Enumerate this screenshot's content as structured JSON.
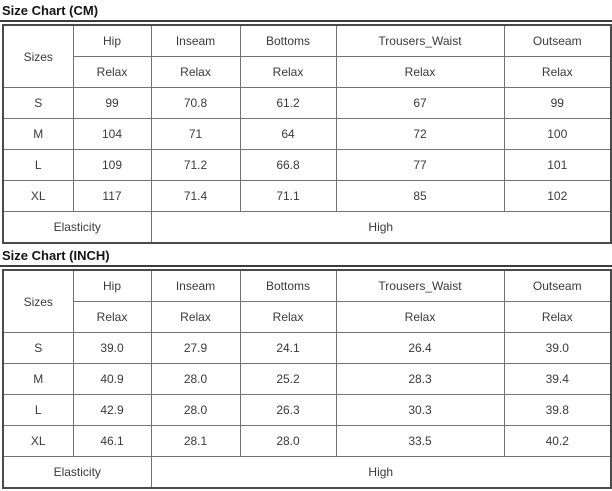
{
  "colors": {
    "background": "#ffffff",
    "title_text": "#141414",
    "cell_text": "#3a3a3a",
    "outer_border": "#4a4a4a",
    "inner_border": "#737373"
  },
  "sections": [
    {
      "title": "Size Chart (CM)",
      "corner_label": "Sizes",
      "columns": [
        "Hip",
        "Inseam",
        "Bottoms",
        "Trousers_Waist",
        "Outseam"
      ],
      "subheaders": [
        "Relax",
        "Relax",
        "Relax",
        "Relax",
        "Relax"
      ],
      "rows": [
        {
          "size": "S",
          "values": [
            "99",
            "70.8",
            "61.2",
            "67",
            "99"
          ]
        },
        {
          "size": "M",
          "values": [
            "104",
            "71",
            "64",
            "72",
            "100"
          ]
        },
        {
          "size": "L",
          "values": [
            "109",
            "71.2",
            "66.8",
            "77",
            "101"
          ]
        },
        {
          "size": "XL",
          "values": [
            "117",
            "71.4",
            "71.1",
            "85",
            "102"
          ]
        }
      ],
      "footer_label": "Elasticity",
      "footer_value": "High"
    },
    {
      "title": "Size Chart (INCH)",
      "corner_label": "Sizes",
      "columns": [
        "Hip",
        "Inseam",
        "Bottoms",
        "Trousers_Waist",
        "Outseam"
      ],
      "subheaders": [
        "Relax",
        "Relax",
        "Relax",
        "Relax",
        "Relax"
      ],
      "rows": [
        {
          "size": "S",
          "values": [
            "39.0",
            "27.9",
            "24.1",
            "26.4",
            "39.0"
          ]
        },
        {
          "size": "M",
          "values": [
            "40.9",
            "28.0",
            "25.2",
            "28.3",
            "39.4"
          ]
        },
        {
          "size": "L",
          "values": [
            "42.9",
            "28.0",
            "26.3",
            "30.3",
            "39.8"
          ]
        },
        {
          "size": "XL",
          "values": [
            "46.1",
            "28.1",
            "28.0",
            "33.5",
            "40.2"
          ]
        }
      ],
      "footer_label": "Elasticity",
      "footer_value": "High"
    }
  ]
}
